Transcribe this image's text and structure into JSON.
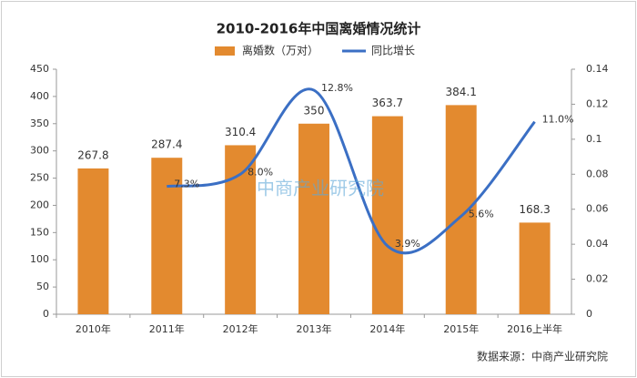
{
  "chart_data": {
    "type": "bar",
    "title": "2010-2016年中国离婚情况统计",
    "categories": [
      "2010年",
      "2011年",
      "2012年",
      "2013年",
      "2014年",
      "2015年",
      "2016上半年"
    ],
    "series": [
      {
        "name": "离婚数（万对）",
        "type": "bar",
        "color": "#e38a2f",
        "values": [
          267.8,
          287.4,
          310.4,
          350,
          363.7,
          384.1,
          168.3
        ]
      },
      {
        "name": "同比增长",
        "type": "line",
        "axis": "y2",
        "color": "#3b6fc4",
        "values": [
          null,
          0.073,
          0.08,
          0.128,
          0.039,
          0.056,
          0.11
        ],
        "value_labels": [
          null,
          "7.3%",
          "8.0%",
          "12.8%",
          "3.9%",
          "5.6%",
          "11.0%"
        ]
      }
    ],
    "ylim": [
      0,
      450
    ],
    "yticks": [
      0,
      50,
      100,
      150,
      200,
      250,
      300,
      350,
      400,
      450
    ],
    "y2lim": [
      0,
      0.14
    ],
    "y2ticks": [
      0,
      0.02,
      0.04,
      0.06,
      0.08,
      0.1,
      0.12,
      0.14
    ],
    "grid": false,
    "legend": "top",
    "watermark": "中商产业研究院",
    "source": "数据来源：中商产业研究院"
  }
}
